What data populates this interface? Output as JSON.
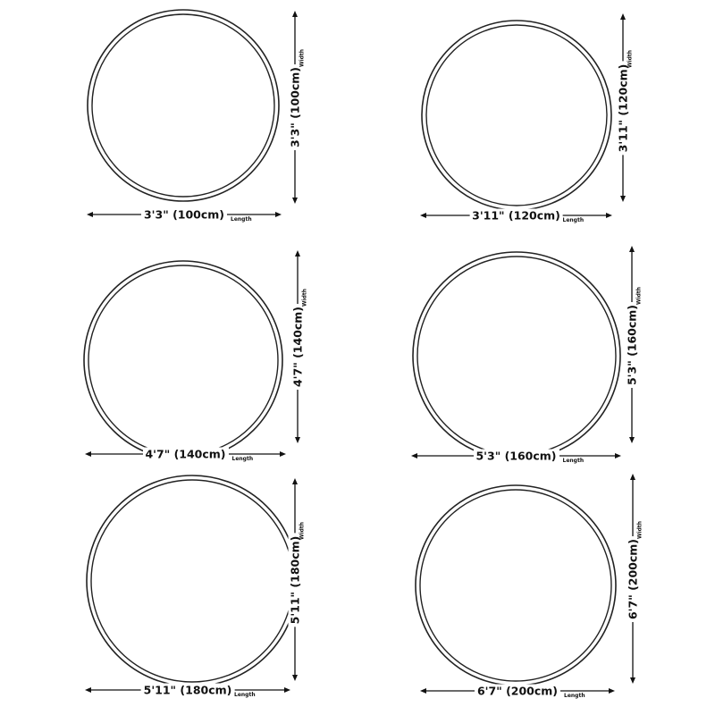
{
  "length_word": "Length",
  "width_word": "Width",
  "rugs": [
    {
      "length": "3'3\" (100cm)",
      "width": "3'3\" (100cm)"
    },
    {
      "length": "3'11\" (120cm)",
      "width": "3'11\" (120cm)"
    },
    {
      "length": "4'7\" (140cm)",
      "width": "4'7\" (140cm)"
    },
    {
      "length": "5'3\" (160cm)",
      "width": "5'3\" (160cm)"
    },
    {
      "length": "5'11\" (180cm)",
      "width": "5'11\" (180cm)"
    },
    {
      "length": "6'7\" (200cm)",
      "width": "6'7\" (200cm)"
    }
  ]
}
